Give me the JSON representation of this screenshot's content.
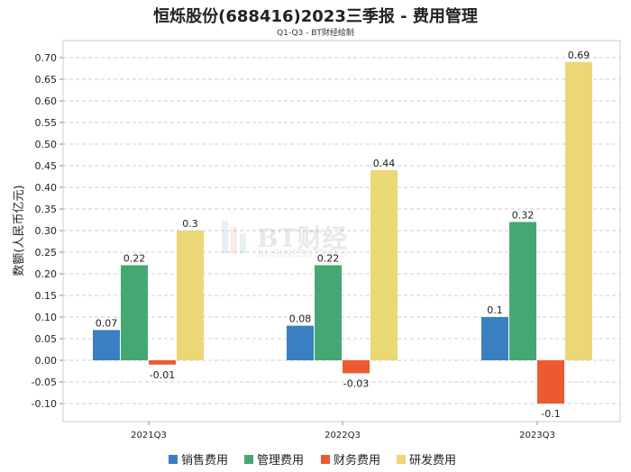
{
  "chart_data": {
    "type": "bar",
    "title": "恒烁股份(688416)2023三季报 - 费用管理",
    "subtitle": "Q1-Q3 - BT财经绘制",
    "ylabel": "数额(人民币亿元)",
    "xlabel": "",
    "ylim": [
      -0.12,
      0.72
    ],
    "yticks": [
      -0.1,
      -0.05,
      0.0,
      0.05,
      0.1,
      0.15,
      0.2,
      0.25,
      0.3,
      0.35,
      0.4,
      0.45,
      0.5,
      0.55,
      0.6,
      0.65,
      0.7
    ],
    "ytick_labels": [
      "-0.10",
      "-0.05",
      "0.00",
      "0.05",
      "0.10",
      "0.15",
      "0.20",
      "0.25",
      "0.30",
      "0.35",
      "0.40",
      "0.45",
      "0.50",
      "0.55",
      "0.60",
      "0.65",
      "0.70"
    ],
    "grid": true,
    "legend_position": "bottom",
    "categories": [
      "2021Q3",
      "2022Q3",
      "2023Q3"
    ],
    "series": [
      {
        "name": "销售费用",
        "color": "#3a7fc1",
        "values": [
          0.07,
          0.08,
          0.1
        ],
        "labels": [
          "0.07",
          "0.08",
          "0.1"
        ]
      },
      {
        "name": "管理费用",
        "color": "#45a874",
        "values": [
          0.22,
          0.22,
          0.32
        ],
        "labels": [
          "0.22",
          "0.22",
          "0.32"
        ]
      },
      {
        "name": "财务费用",
        "color": "#ee5a2f",
        "values": [
          -0.01,
          -0.03,
          -0.1
        ],
        "labels": [
          "-0.01",
          "-0.03",
          "-0.1"
        ]
      },
      {
        "name": "研发费用",
        "color": "#ecd776",
        "values": [
          0.3,
          0.44,
          0.69
        ],
        "labels": [
          "0.3",
          "0.44",
          "0.69"
        ]
      }
    ]
  },
  "watermark": {
    "main": "BT财经",
    "sub": "BUSINESSTIMES"
  }
}
